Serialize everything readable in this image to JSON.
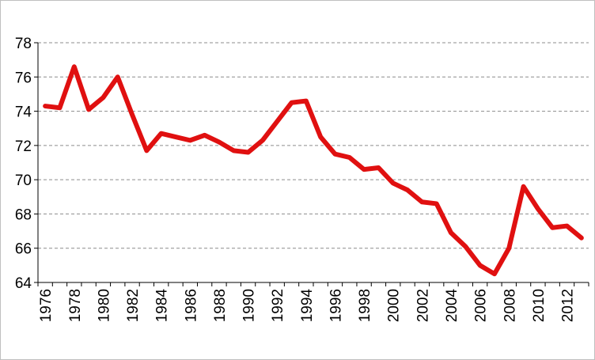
{
  "chart_data": {
    "type": "line",
    "title": "",
    "xlabel": "",
    "ylabel": "",
    "x": [
      1976,
      1977,
      1978,
      1979,
      1980,
      1981,
      1982,
      1983,
      1984,
      1985,
      1986,
      1987,
      1988,
      1989,
      1990,
      1991,
      1992,
      1993,
      1994,
      1995,
      1996,
      1997,
      1998,
      1999,
      2000,
      2001,
      2002,
      2003,
      2004,
      2005,
      2006,
      2007,
      2008,
      2009,
      2010,
      2011,
      2012,
      2013
    ],
    "series": [
      {
        "values": [
          74.3,
          74.2,
          76.6,
          74.1,
          74.8,
          76.0,
          73.8,
          71.7,
          72.7,
          72.5,
          72.3,
          72.6,
          72.2,
          71.7,
          71.6,
          72.3,
          73.4,
          74.5,
          74.6,
          72.5,
          71.5,
          71.3,
          70.6,
          70.7,
          69.8,
          69.4,
          68.7,
          68.6,
          66.9,
          66.1,
          65.0,
          64.5,
          66.0,
          69.6,
          68.3,
          67.2,
          67.3,
          66.6
        ],
        "color": "#e01010"
      }
    ],
    "ylim": [
      64,
      78
    ],
    "yticks": [
      64,
      66,
      68,
      70,
      72,
      74,
      76,
      78
    ],
    "xtick_labels": [
      "1976",
      "1978",
      "1980",
      "1982",
      "1984",
      "1986",
      "1988",
      "1990",
      "1992",
      "1994",
      "1996",
      "1998",
      "2000",
      "2002",
      "2004",
      "2006",
      "2008",
      "2010",
      "2012"
    ],
    "grid": "horizontal-dashed",
    "legend": "none"
  }
}
